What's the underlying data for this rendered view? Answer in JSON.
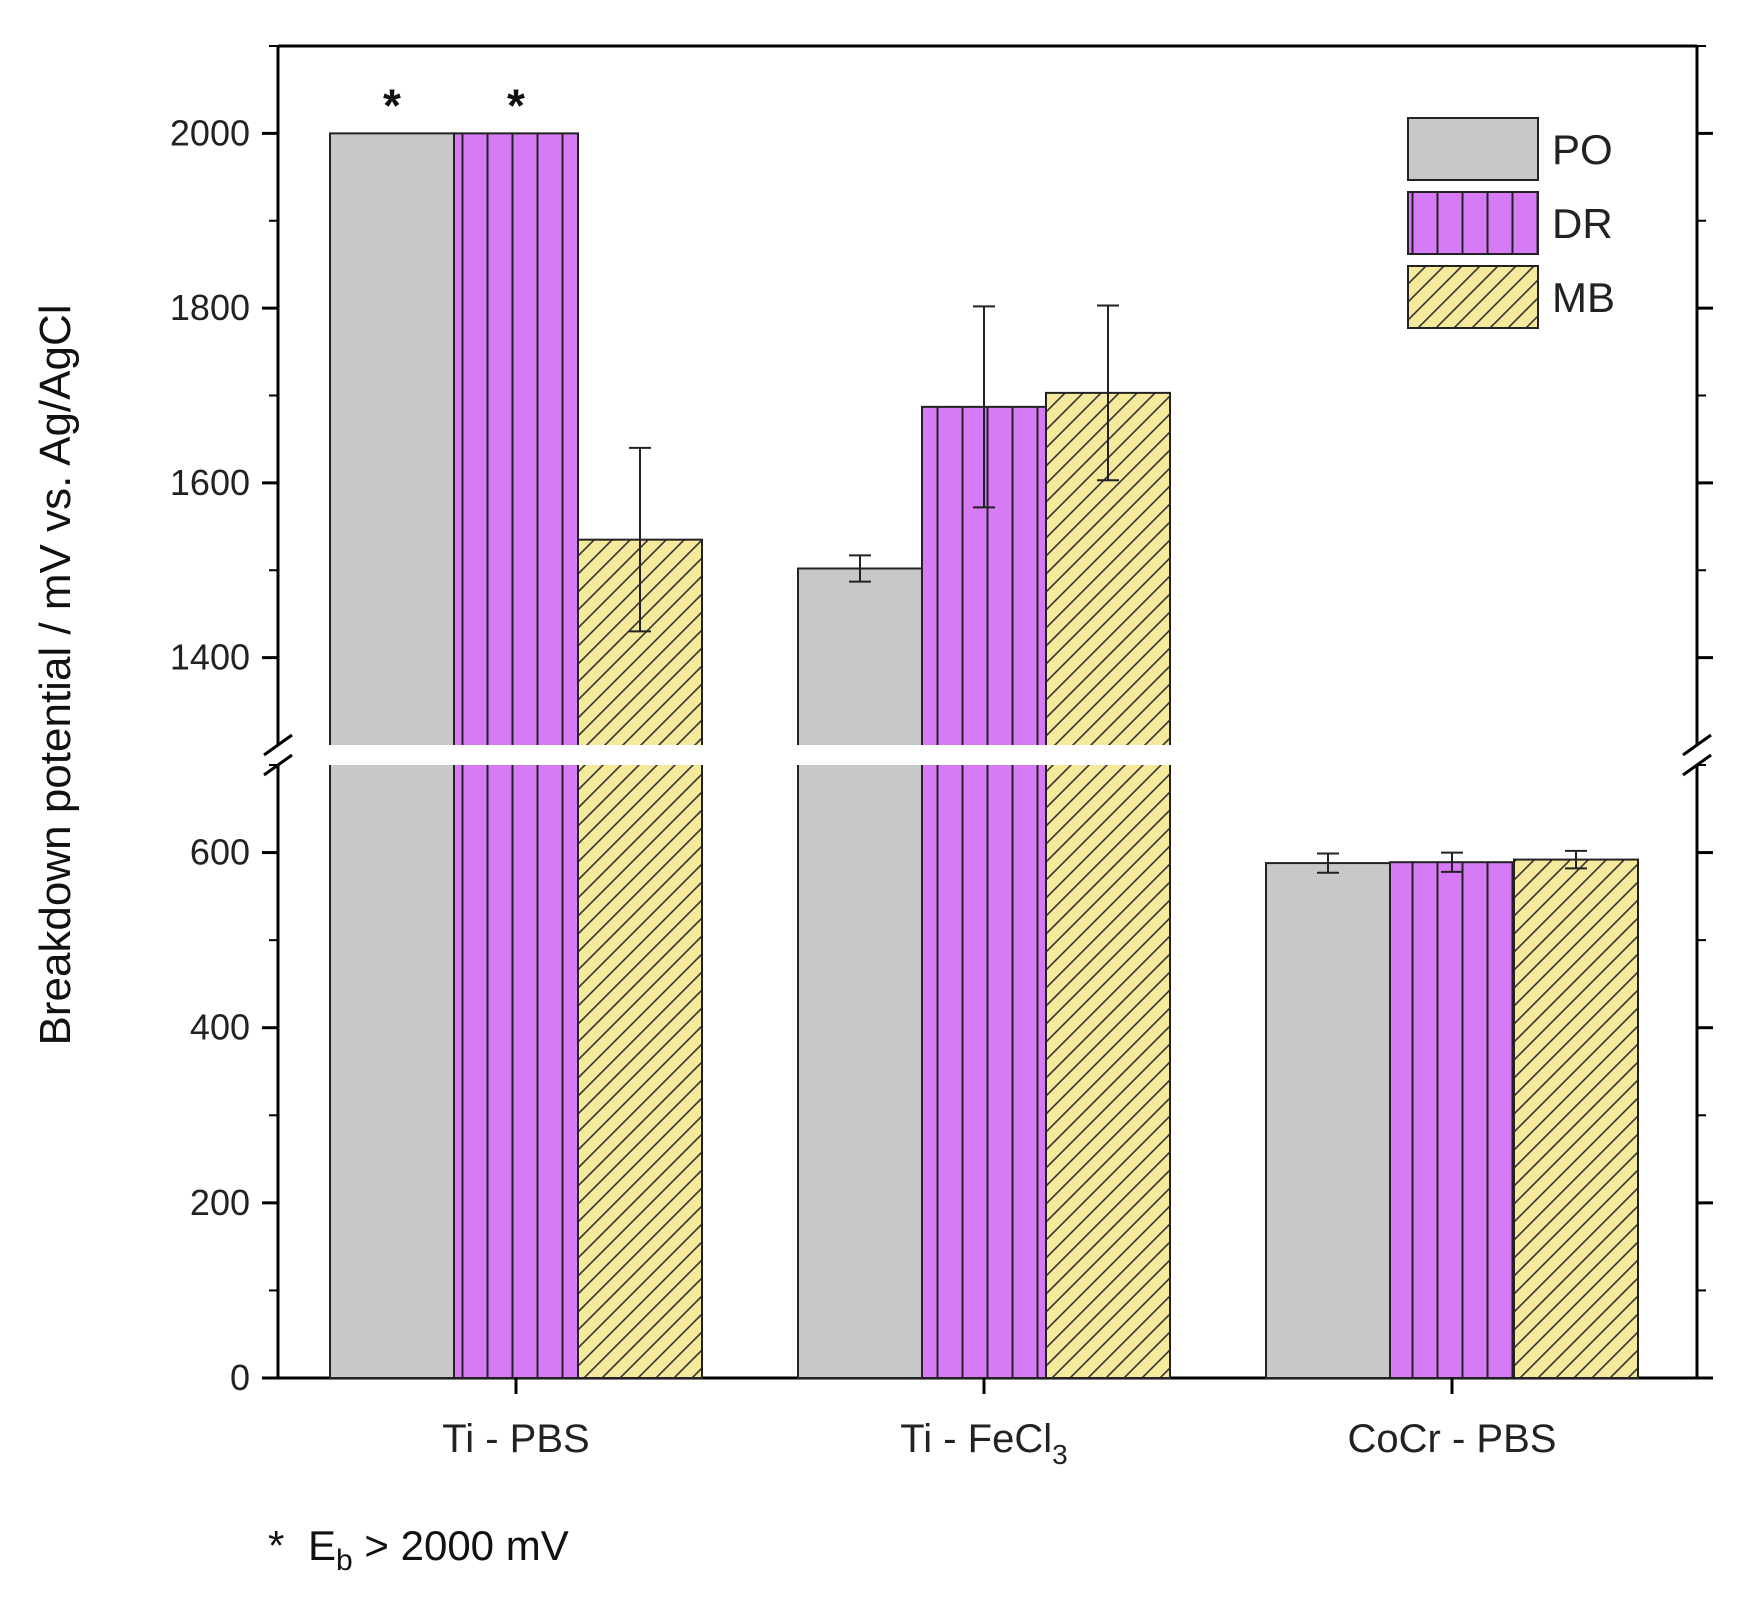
{
  "chart_data": {
    "type": "bar",
    "ylabel": "Breakdown potential  /  mV vs. Ag/AgCl",
    "axis_break": [
      700,
      1300
    ],
    "ylim_lower": [
      0,
      700
    ],
    "ylim_upper": [
      1300,
      2100
    ],
    "lower_ticks": [
      "0",
      "200",
      "400",
      "600"
    ],
    "upper_ticks": [
      "1400",
      "1600",
      "1800",
      "2000"
    ],
    "categories": [
      {
        "main": "Ti -  PBS",
        "sub": "",
        "tail": ""
      },
      {
        "main": "Ti - FeCl",
        "sub": "3",
        "tail": ""
      },
      {
        "main": "CoCr - PBS",
        "sub": "",
        "tail": ""
      }
    ],
    "series": [
      {
        "name": "PO",
        "color": "#c8c8c8",
        "pattern": "solid",
        "values": [
          2000,
          1502,
          588
        ],
        "errors": [
          null,
          15,
          11
        ]
      },
      {
        "name": "DR",
        "color": "#d77af5",
        "pattern": "vertical",
        "values": [
          2000,
          1687,
          589
        ],
        "errors": [
          null,
          115,
          11
        ]
      },
      {
        "name": "MB",
        "color": "#f5e99b",
        "pattern": "diagonal",
        "values": [
          1535,
          1703,
          592
        ],
        "errors": [
          105,
          100,
          10
        ]
      }
    ],
    "star_marks": [
      {
        "category": 0,
        "series": 0,
        "label": "*"
      },
      {
        "category": 0,
        "series": 1,
        "label": "*"
      }
    ],
    "footnote": {
      "star": "*",
      "symbol": "E",
      "sub": "b",
      "rest": " > 2000 mV"
    }
  }
}
